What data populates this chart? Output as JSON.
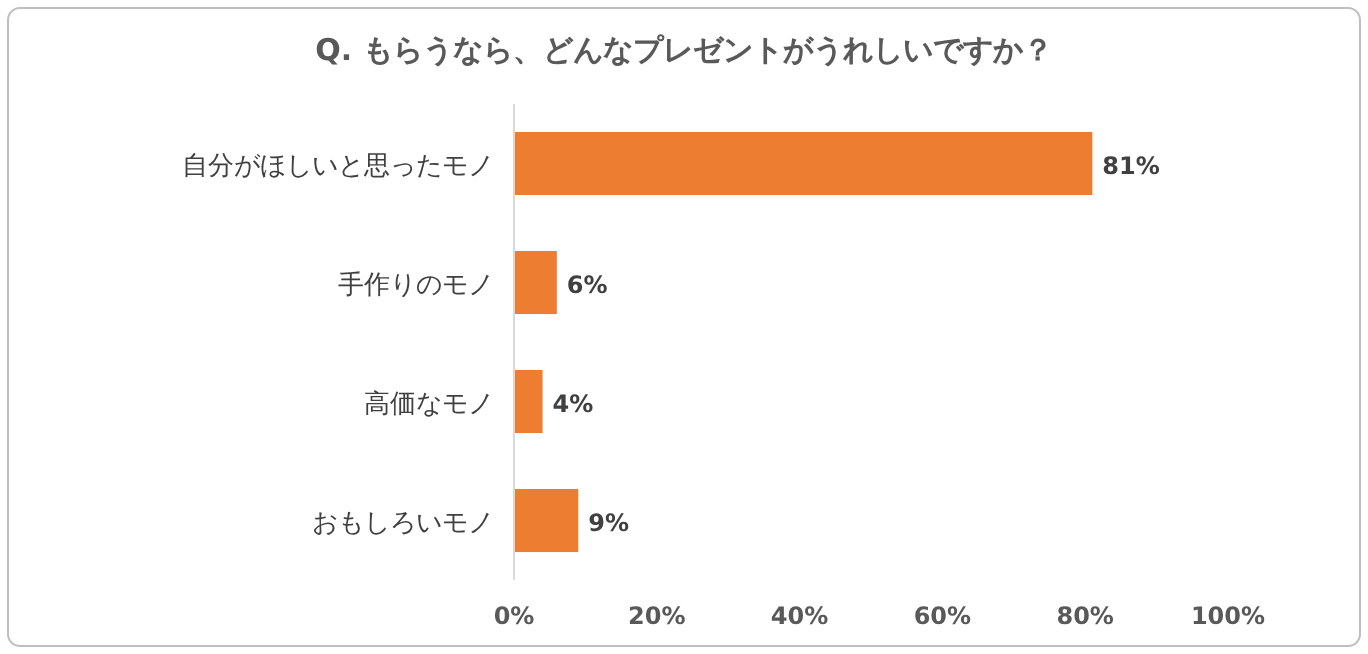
{
  "chart_data": {
    "type": "bar",
    "orientation": "horizontal",
    "title": "Q. もらうなら、どんなプレゼントがうれしいですか？",
    "categories": [
      "自分がほしいと思ったモノ",
      "手作りのモノ",
      "高価なモノ",
      "おもしろいモノ"
    ],
    "values": [
      81,
      6,
      4,
      9
    ],
    "value_labels": [
      "81%",
      "6%",
      "4%",
      "9%"
    ],
    "color": "#ed7d31",
    "xlim": [
      0,
      100
    ],
    "xticks": [
      {
        "value": 0,
        "label": "0%"
      },
      {
        "value": 20,
        "label": "20%"
      },
      {
        "value": 40,
        "label": "40%"
      },
      {
        "value": 60,
        "label": "60%"
      },
      {
        "value": 80,
        "label": "80%"
      },
      {
        "value": 100,
        "label": "100%"
      }
    ]
  }
}
